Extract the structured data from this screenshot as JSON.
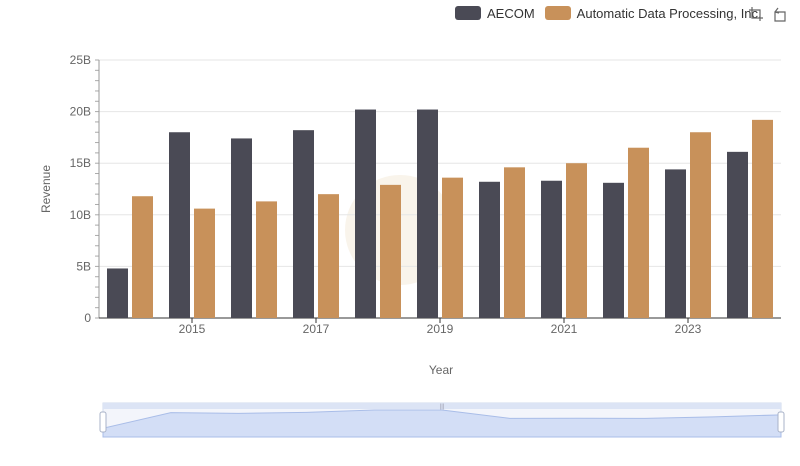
{
  "chart_data": {
    "type": "bar",
    "categories": [
      2014,
      2015,
      2016,
      2017,
      2018,
      2019,
      2020,
      2021,
      2022,
      2023,
      2024
    ],
    "x_tick_labels": [
      "2015",
      "2017",
      "2019",
      "2021",
      "2023"
    ],
    "x_tick_values": [
      2015,
      2017,
      2019,
      2021,
      2023
    ],
    "y_tick_labels": [
      "0",
      "5B",
      "10B",
      "15B",
      "20B",
      "25B"
    ],
    "y_tick_values": [
      0,
      5,
      10,
      15,
      20,
      25
    ],
    "ylim": [
      0,
      25
    ],
    "xlabel": "Year",
    "ylabel": "Revenue",
    "series": [
      {
        "name": "AECOM",
        "color": "#4a4a55",
        "values": [
          4.8,
          18.0,
          17.4,
          18.2,
          20.2,
          20.2,
          13.2,
          13.3,
          13.1,
          14.4,
          16.1
        ]
      },
      {
        "name": "Automatic Data Processing, Inc.",
        "color": "#c8915a",
        "values": [
          11.8,
          10.6,
          11.3,
          12.0,
          12.9,
          13.6,
          14.6,
          15.0,
          16.5,
          18.0,
          19.2
        ]
      }
    ],
    "overview_values": [
      4.8,
      18.0,
      17.4,
      18.2,
      20.2,
      20.2,
      13.2,
      13.3,
      13.1,
      14.4,
      16.1
    ],
    "legend_position": "top-right",
    "grid": true
  },
  "toolbar": {
    "zoom_icon": "zoom-icon",
    "restore_icon": "restore-icon"
  }
}
